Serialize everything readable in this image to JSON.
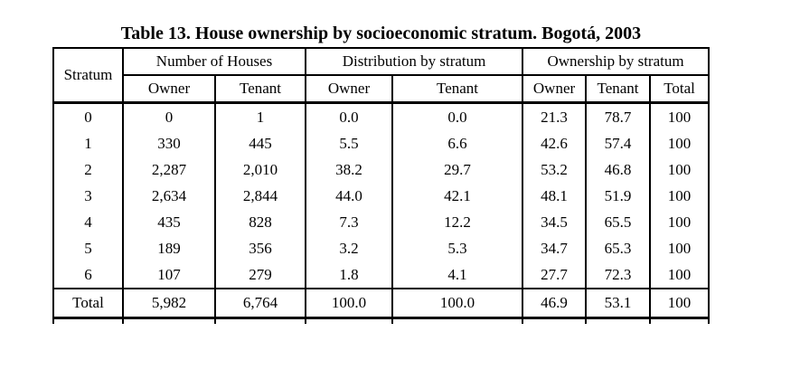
{
  "page": {
    "title": "Table 13. House ownership by socioeconomic stratum. Bogotá, 2003"
  },
  "colors": {
    "background": "#ffffff",
    "text": "#000000",
    "border": "#000000"
  },
  "table": {
    "corner_header": "Stratum",
    "groups": [
      {
        "label": "Number of Houses",
        "span": 2
      },
      {
        "label": "Distribution by stratum",
        "span": 2
      },
      {
        "label": "Ownership by stratum",
        "span": 3
      }
    ],
    "sub_headers": [
      "Owner",
      "Tenant",
      "Owner",
      "Tenant",
      "Owner",
      "Tenant",
      "Total"
    ],
    "rows": [
      {
        "stratum": "0",
        "values": [
          "0",
          "1",
          "0.0",
          "0.0",
          "21.3",
          "78.7",
          "100"
        ]
      },
      {
        "stratum": "1",
        "values": [
          "330",
          "445",
          "5.5",
          "6.6",
          "42.6",
          "57.4",
          "100"
        ]
      },
      {
        "stratum": "2",
        "values": [
          "2,287",
          "2,010",
          "38.2",
          "29.7",
          "53.2",
          "46.8",
          "100"
        ]
      },
      {
        "stratum": "3",
        "values": [
          "2,634",
          "2,844",
          "44.0",
          "42.1",
          "48.1",
          "51.9",
          "100"
        ]
      },
      {
        "stratum": "4",
        "values": [
          "435",
          "828",
          "7.3",
          "12.2",
          "34.5",
          "65.5",
          "100"
        ]
      },
      {
        "stratum": "5",
        "values": [
          "189",
          "356",
          "3.2",
          "5.3",
          "34.7",
          "65.3",
          "100"
        ]
      },
      {
        "stratum": "6",
        "values": [
          "107",
          "279",
          "1.8",
          "4.1",
          "27.7",
          "72.3",
          "100"
        ]
      }
    ],
    "total_row": {
      "stratum": "Total",
      "values": [
        "5,982",
        "6,764",
        "100.0",
        "100.0",
        "46.9",
        "53.1",
        "100"
      ]
    }
  }
}
